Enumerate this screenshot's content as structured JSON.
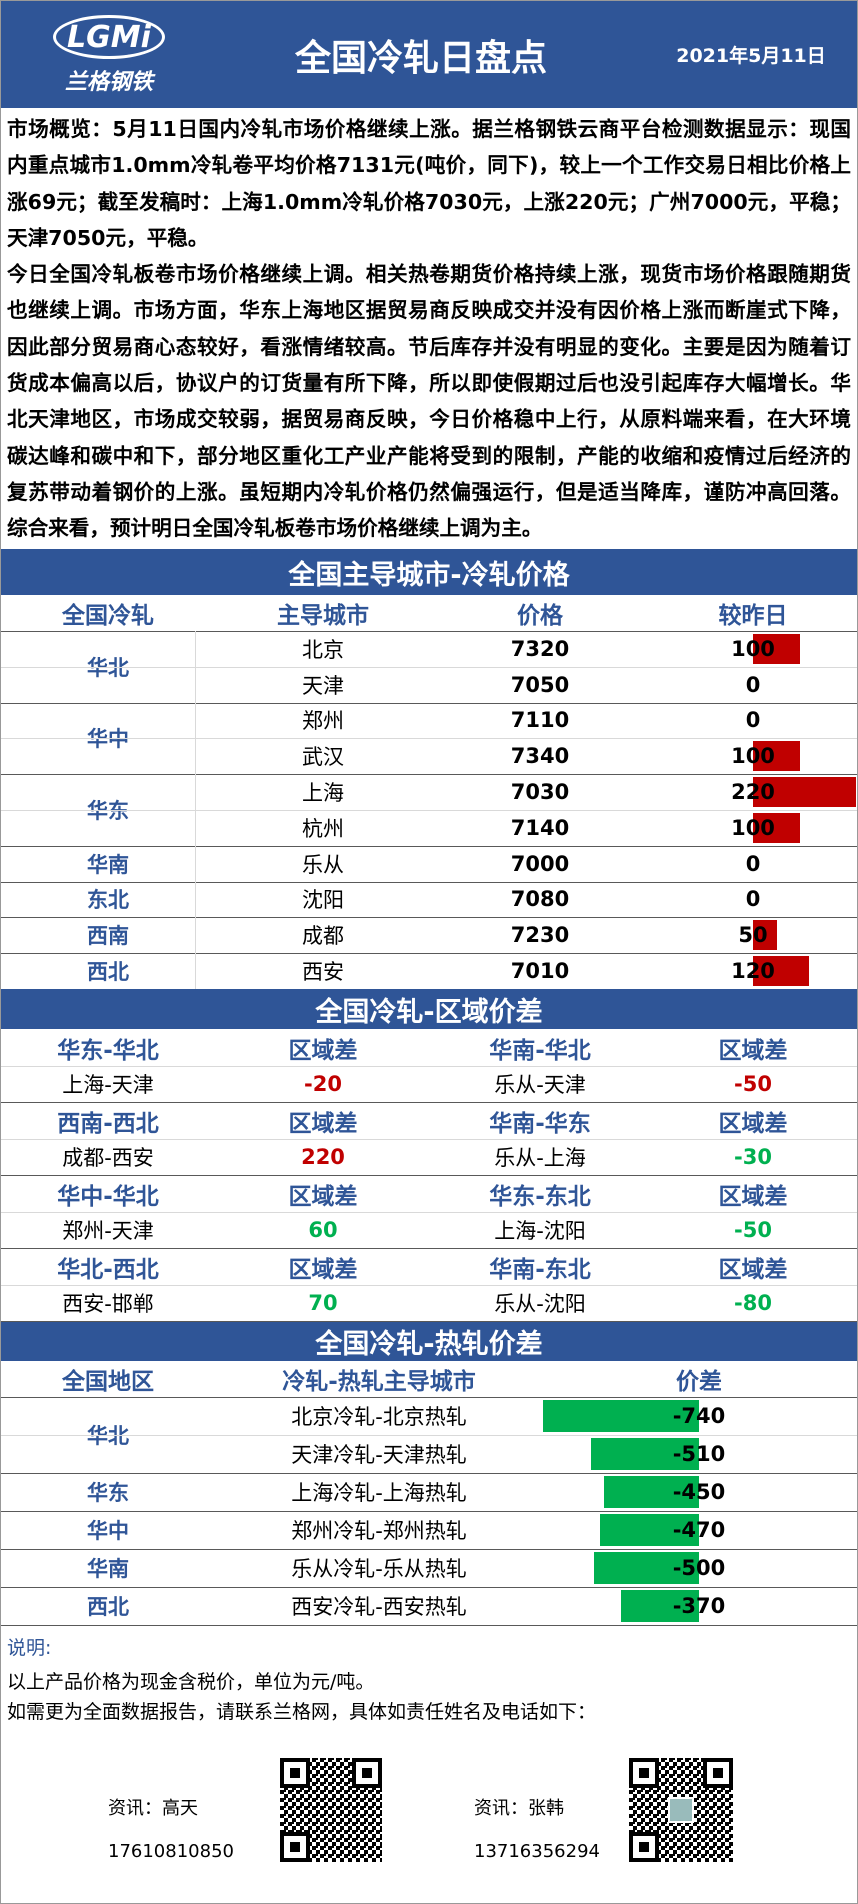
{
  "header": {
    "logo_text": "LGMi",
    "logo_subtext": "兰格钢铁",
    "title": "全国冷轧日盘点",
    "date": "2021年5月11日"
  },
  "overview": {
    "paragraphs": [
      "市场概览：5月11日国内冷轧市场价格继续上涨。据兰格钢铁云商平台检测数据显示：现国内重点城市1.0mm冷轧卷平均价格7131元(吨价，同下)，较上一个工作交易日相比价格上涨69元；截至发稿时：上海1.0mm冷轧价格7030元，上涨220元；广州7000元，平稳；天津7050元，平稳。",
      "今日全国冷轧板卷市场价格继续上调。相关热卷期货价格持续上涨，现货市场价格跟随期货也继续上调。市场方面，华东上海地区据贸易商反映成交并没有因价格上涨而断崖式下降，因此部分贸易商心态较好，看涨情绪较高。节后库存并没有明显的变化。主要是因为随着订货成本偏高以后，协议户的订货量有所下降，所以即使假期过后也没引起库存大幅增长。华北天津地区，市场成交较弱，据贸易商反映，今日价格稳中上行，从原料端来看，在大环境碳达峰和碳中和下，部分地区重化工产业产能将受到的限制，产能的收缩和疫情过后经济的复苏带动着钢价的上涨。虽短期内冷轧价格仍然偏强运行，但是适当降库，谨防冲高回落。综合来看，预计明日全国冷轧板卷市场价格继续上调为主。"
    ]
  },
  "city_prices": {
    "title": "全国主导城市-冷轧价格",
    "columns": [
      "全国冷轧",
      "主导城市",
      "价格",
      "较昨日"
    ],
    "bar_color": "#c00000",
    "groups": [
      {
        "region": "华北",
        "rows": [
          {
            "city": "北京",
            "price": 7320,
            "change": 100
          },
          {
            "city": "天津",
            "price": 7050,
            "change": 0
          }
        ]
      },
      {
        "region": "华中",
        "rows": [
          {
            "city": "郑州",
            "price": 7110,
            "change": 0
          },
          {
            "city": "武汉",
            "price": 7340,
            "change": 100
          }
        ]
      },
      {
        "region": "华东",
        "rows": [
          {
            "city": "上海",
            "price": 7030,
            "change": 220
          },
          {
            "city": "杭州",
            "price": 7140,
            "change": 100
          }
        ]
      },
      {
        "region": "华南",
        "rows": [
          {
            "city": "乐从",
            "price": 7000,
            "change": 0
          }
        ]
      },
      {
        "region": "东北",
        "rows": [
          {
            "city": "沈阳",
            "price": 7080,
            "change": 0
          }
        ]
      },
      {
        "region": "西南",
        "rows": [
          {
            "city": "成都",
            "price": 7230,
            "change": 50
          }
        ]
      },
      {
        "region": "西北",
        "rows": [
          {
            "city": "西安",
            "price": 7010,
            "change": 120
          }
        ]
      }
    ]
  },
  "region_spread": {
    "title": "全国冷轧-区域价差",
    "blocks": [
      [
        {
          "pair_header": "华东-华北",
          "diff_header": "区域差",
          "pair": "上海-天津",
          "value": -20,
          "color": "#c00000"
        },
        {
          "pair_header": "华南-华北",
          "diff_header": "区域差",
          "pair": "乐从-天津",
          "value": -50,
          "color": "#c00000"
        }
      ],
      [
        {
          "pair_header": "西南-西北",
          "diff_header": "区域差",
          "pair": "成都-西安",
          "value": 220,
          "color": "#c00000"
        },
        {
          "pair_header": "华南-华东",
          "diff_header": "区域差",
          "pair": "乐从-上海",
          "value": -30,
          "color": "#00b050"
        }
      ],
      [
        {
          "pair_header": "华中-华北",
          "diff_header": "区域差",
          "pair": "郑州-天津",
          "value": 60,
          "color": "#00b050"
        },
        {
          "pair_header": "华东-东北",
          "diff_header": "区域差",
          "pair": "上海-沈阳",
          "value": -50,
          "color": "#00b050"
        }
      ],
      [
        {
          "pair_header": "华北-西北",
          "diff_header": "区域差",
          "pair": "西安-邯郸",
          "value": 70,
          "color": "#00b050"
        },
        {
          "pair_header": "华南-东北",
          "diff_header": "区域差",
          "pair": "乐从-沈阳",
          "value": -80,
          "color": "#00b050"
        }
      ]
    ]
  },
  "hot_cold_spread": {
    "title": "全国冷轧-热轧价差",
    "columns": [
      "全国地区",
      "冷轧-热轧主导城市",
      "价差"
    ],
    "bar_color": "#00b050",
    "groups": [
      {
        "region": "华北",
        "rows": [
          {
            "cities": "北京冷轧-北京热轧",
            "value": -740
          },
          {
            "cities": "天津冷轧-天津热轧",
            "value": -510
          }
        ]
      },
      {
        "region": "华东",
        "rows": [
          {
            "cities": "上海冷轧-上海热轧",
            "value": -450
          }
        ]
      },
      {
        "region": "华中",
        "rows": [
          {
            "cities": "郑州冷轧-郑州热轧",
            "value": -470
          }
        ]
      },
      {
        "region": "华南",
        "rows": [
          {
            "cities": "乐从冷轧-乐从热轧",
            "value": -500
          }
        ]
      },
      {
        "region": "西北",
        "rows": [
          {
            "cities": "西安冷轧-西安热轧",
            "value": -370
          }
        ]
      }
    ]
  },
  "notes": {
    "label": "说明:",
    "lines": [
      "以上产品价格为现金含税价，单位为元/吨。",
      "如需更为全面数据报告，请联系兰格网，具体如责任姓名及电话如下："
    ]
  },
  "contacts": [
    {
      "name": "资讯：高天",
      "phone": "17610810850"
    },
    {
      "name": "资讯：张韩",
      "phone": "13716356294"
    }
  ]
}
